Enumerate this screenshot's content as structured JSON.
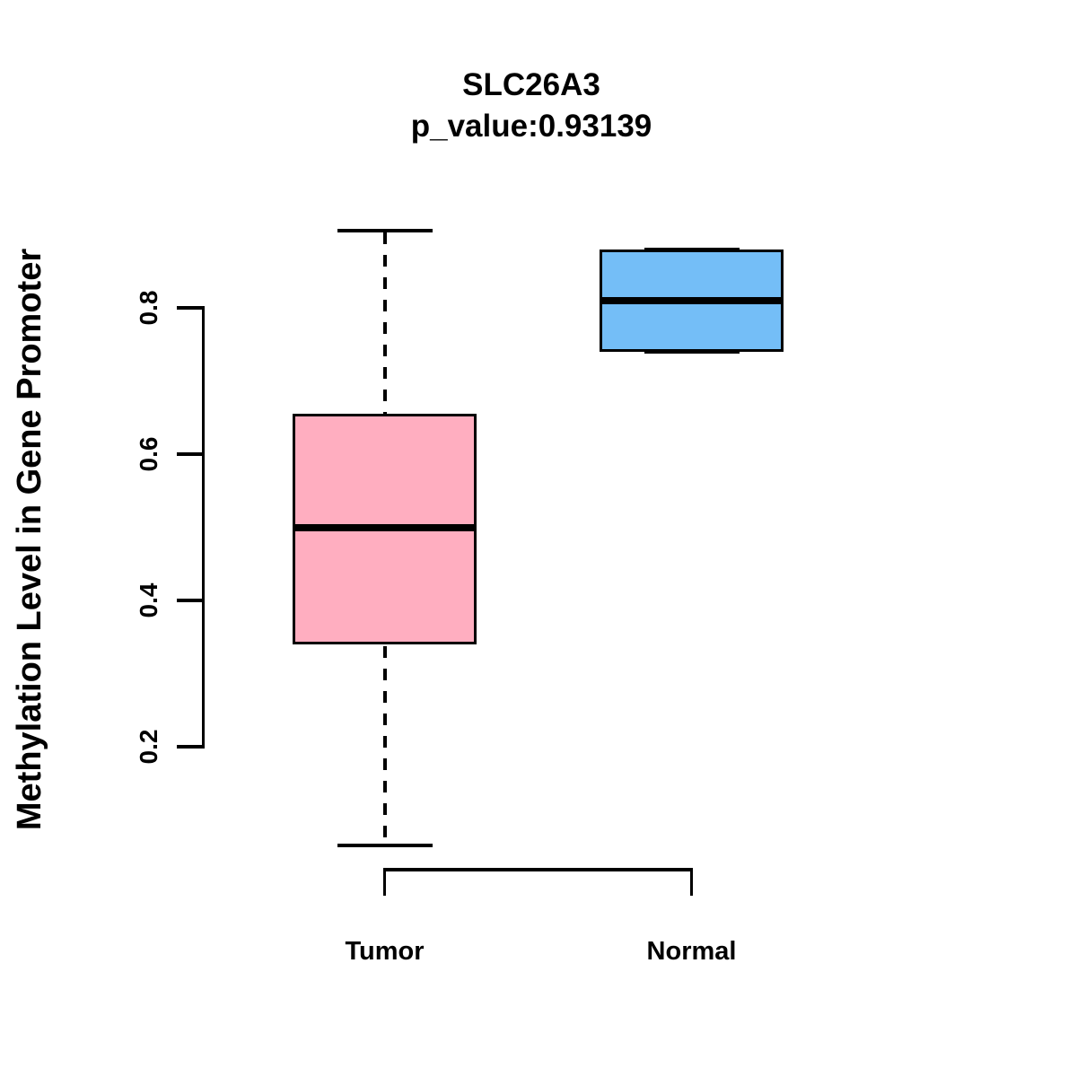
{
  "title": {
    "line1": "SLC26A3",
    "line2": "p_value:0.93139"
  },
  "ylabel": "Methylation Level in Gene Promoter",
  "chart_data": {
    "type": "boxplot",
    "title": "SLC26A3",
    "subtitle": "p_value:0.93139",
    "ylabel": "Methylation Level in Gene Promoter",
    "xlabel": "",
    "categories": [
      "Tumor",
      "Normal"
    ],
    "yticks": [
      "0.2",
      "0.4",
      "0.6",
      "0.8"
    ],
    "ylim": [
      0.065,
      0.905
    ],
    "grid": false,
    "legend": "none",
    "series": [
      {
        "name": "Tumor",
        "whisker_low": 0.065,
        "q1": 0.34,
        "median": 0.5,
        "q3": 0.655,
        "whisker_high": 0.905,
        "fill": "#FFAEC0",
        "stroke": "#000000"
      },
      {
        "name": "Normal",
        "whisker_low": 0.74,
        "q1": 0.74,
        "median": 0.81,
        "q3": 0.88,
        "whisker_high": 0.88,
        "fill": "#74BEF7",
        "stroke": "#000000"
      }
    ]
  }
}
